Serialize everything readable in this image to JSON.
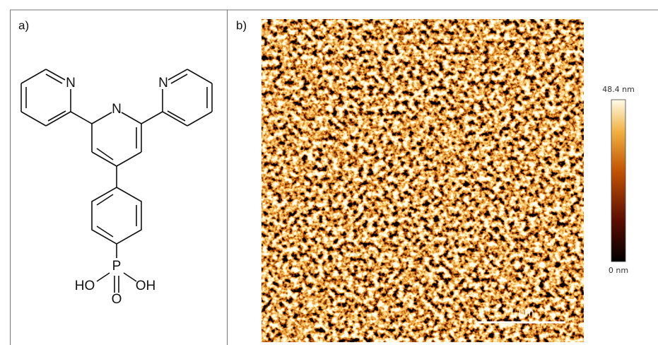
{
  "panel_a": {
    "label": "a)",
    "atoms": {
      "n_left": "N",
      "n_center": "N",
      "n_right": "N",
      "p": "P",
      "ho": "HO",
      "oh": "OH",
      "o": "O"
    }
  },
  "panel_b": {
    "label": "b)",
    "colorbar": {
      "max_label": "48.4 nm",
      "min_label": "0 nm"
    },
    "scale_bar": "1 µm"
  }
}
